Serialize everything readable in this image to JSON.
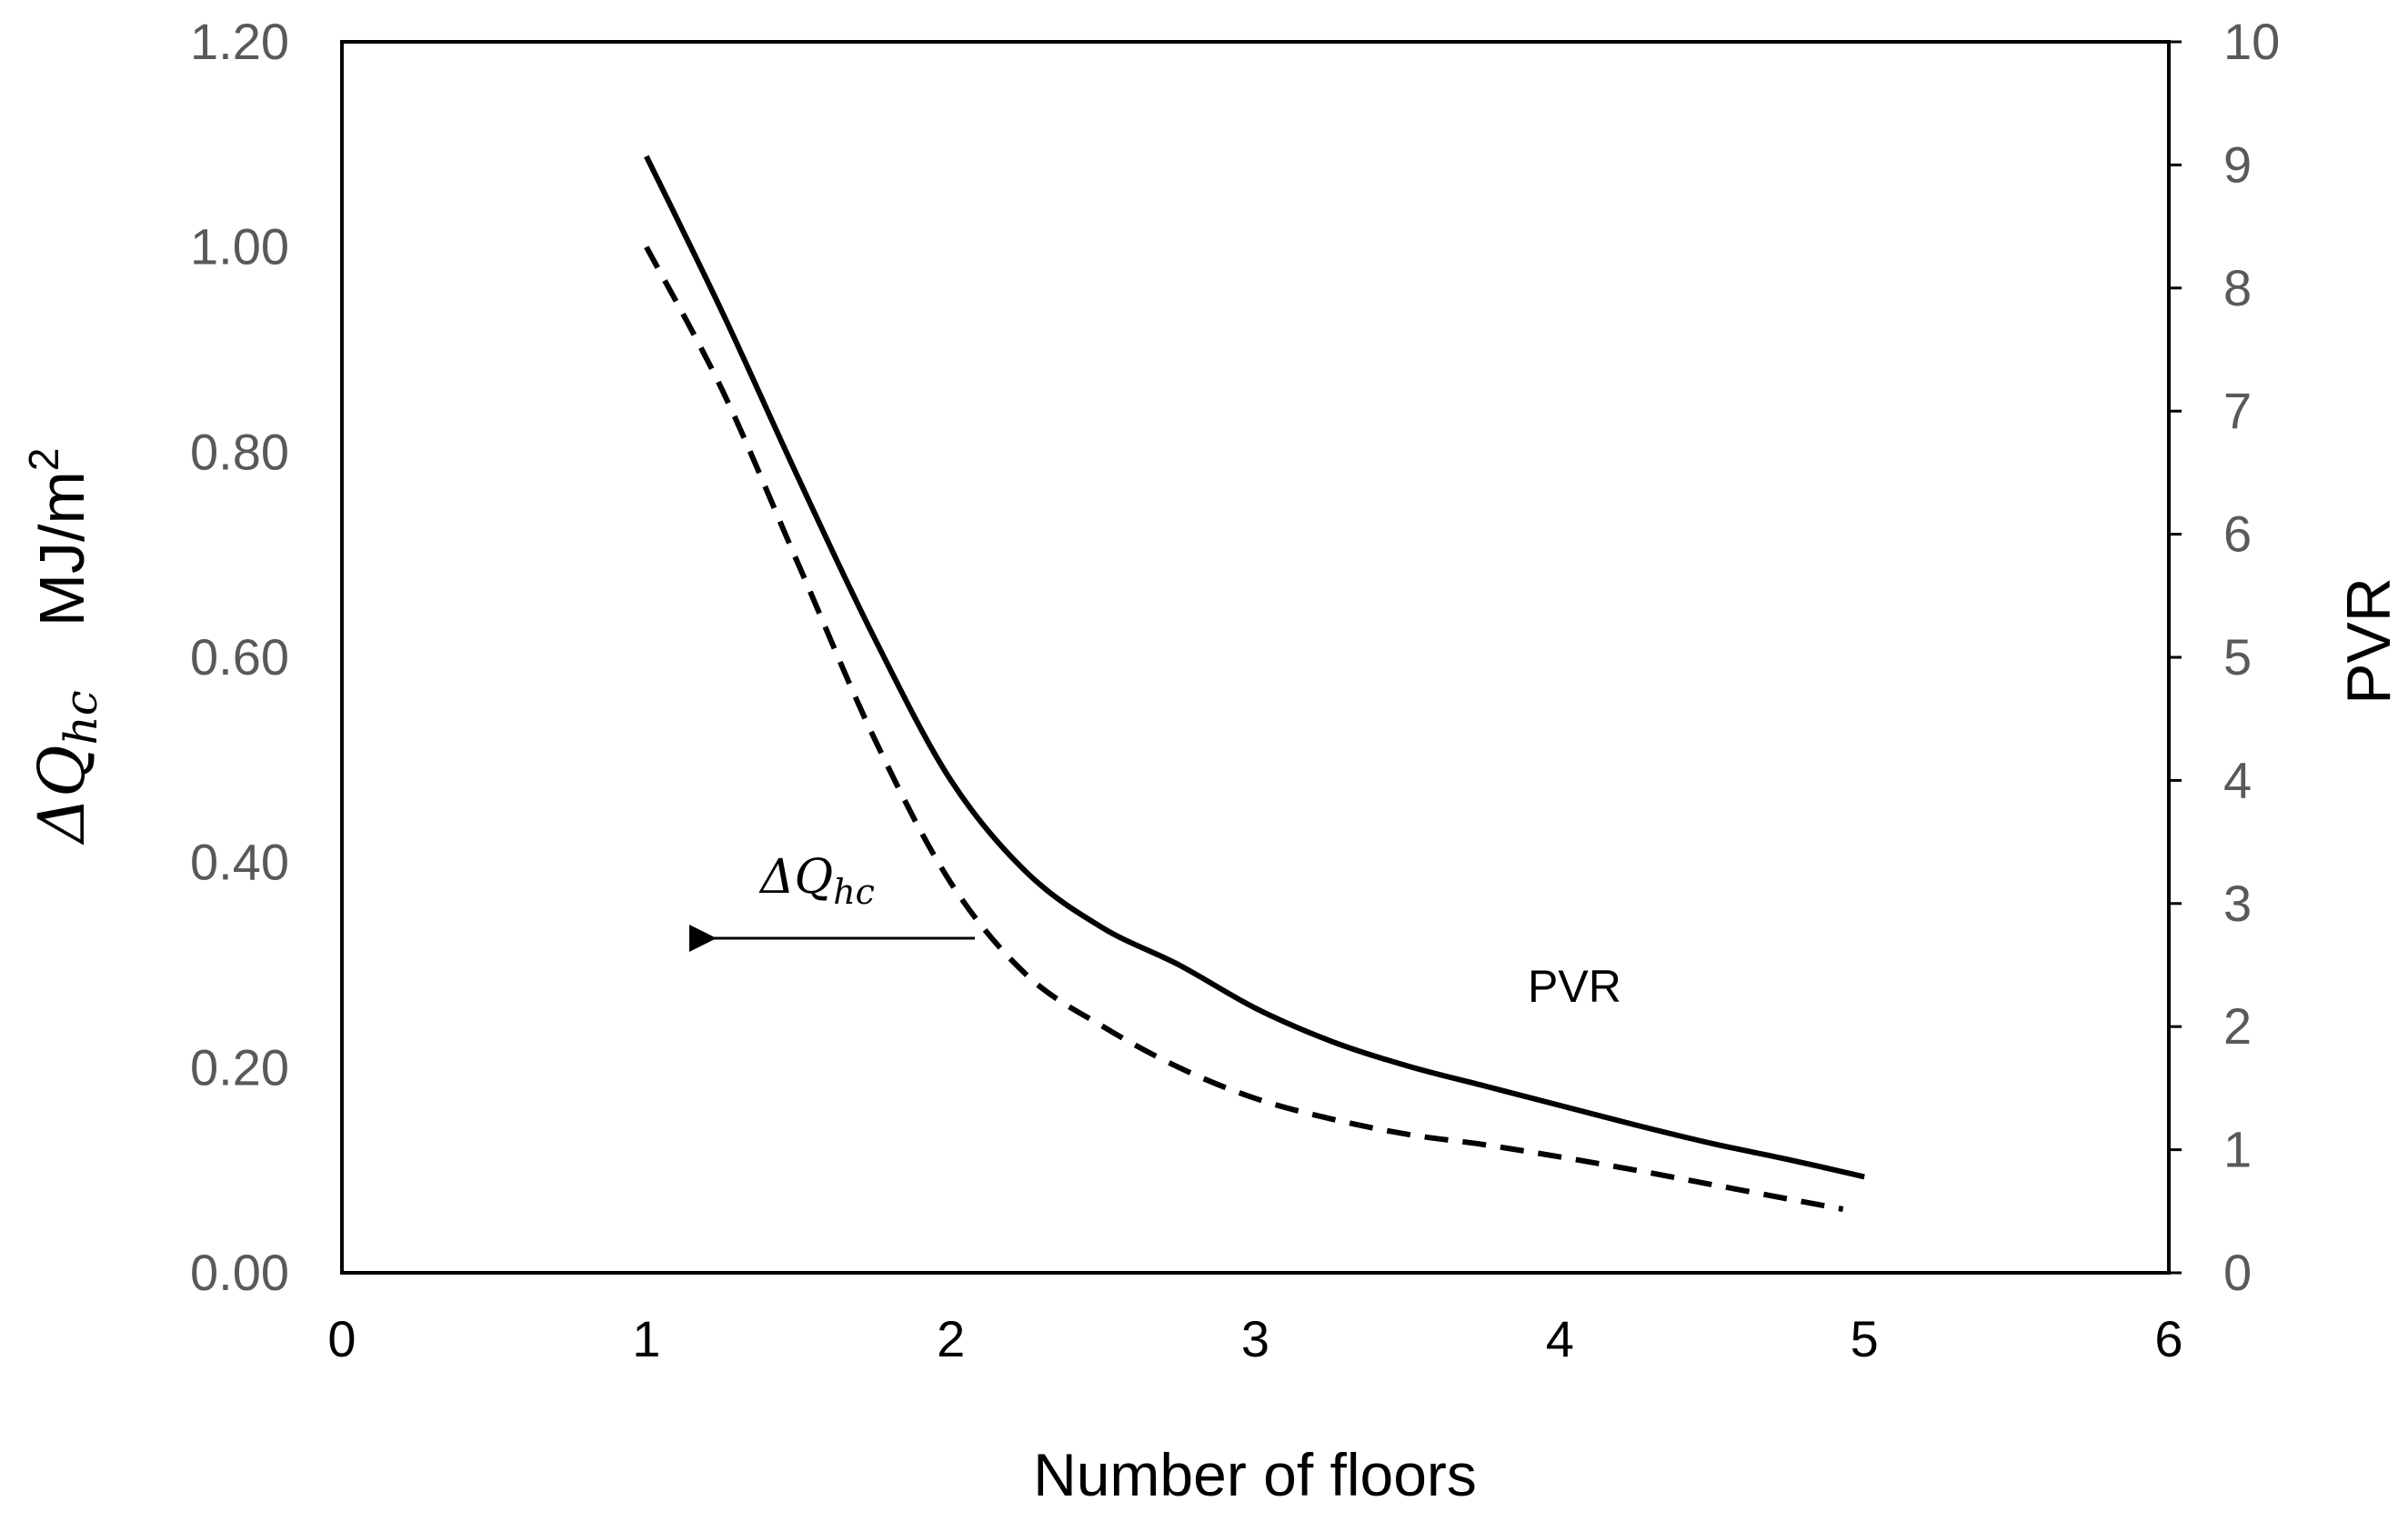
{
  "chart_data": {
    "type": "line",
    "xlabel": "Number of floors",
    "ylabel_left": {
      "symbol": "ΔQ",
      "subscript": "hc",
      "unit": "MJ/m",
      "unit_sup": "2"
    },
    "ylabel_right": "PVR",
    "xlim": [
      0,
      6
    ],
    "ylim_left": [
      0,
      1.2
    ],
    "ylim_right": [
      0,
      10
    ],
    "x_ticks": [
      "0",
      "1",
      "2",
      "3",
      "4",
      "5",
      "6"
    ],
    "y_left_ticks": [
      "0.00",
      "0.20",
      "0.40",
      "0.60",
      "0.80",
      "1.00",
      "1.20"
    ],
    "y_right_ticks": [
      "0",
      "1",
      "2",
      "3",
      "4",
      "5",
      "6",
      "7",
      "8",
      "9",
      "10"
    ],
    "grid": false,
    "series": [
      {
        "name": "PVR",
        "axis": "right",
        "style": "solid",
        "x": [
          1.0,
          1.25,
          1.5,
          1.75,
          2.0,
          2.25,
          2.5,
          2.75,
          3.0,
          3.25,
          3.5,
          3.75,
          4.0,
          4.25,
          4.5,
          4.75,
          5.0
        ],
        "values": [
          9.07,
          7.8,
          6.45,
          5.15,
          4.0,
          3.25,
          2.8,
          2.5,
          2.15,
          1.88,
          1.68,
          1.52,
          1.36,
          1.2,
          1.05,
          0.92,
          0.78
        ]
      },
      {
        "name": "ΔQhc",
        "axis": "left",
        "style": "dashed",
        "x": [
          1.0,
          1.25,
          1.5,
          1.75,
          2.0,
          2.25,
          2.5,
          2.75,
          3.0,
          3.25,
          3.5,
          3.75,
          4.0,
          4.25,
          4.5,
          4.75,
          4.93
        ],
        "values": [
          1.0,
          0.86,
          0.69,
          0.52,
          0.38,
          0.29,
          0.24,
          0.2,
          0.17,
          0.15,
          0.135,
          0.125,
          0.113,
          0.1,
          0.086,
          0.072,
          0.062
        ]
      }
    ],
    "annotations": [
      {
        "symbol": "ΔQ",
        "subscript": "hc",
        "arrow": "left",
        "target_axis": "left"
      },
      {
        "text": "PVR"
      }
    ]
  }
}
